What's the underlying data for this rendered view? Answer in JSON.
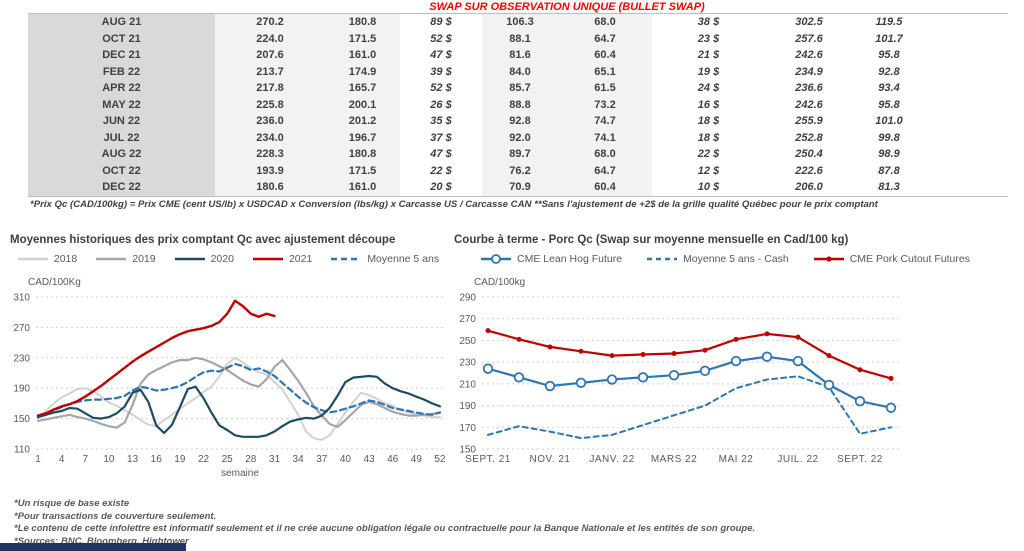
{
  "header": {
    "title": "SWAP SUR OBSERVATION UNIQUE (BULLET SWAP)"
  },
  "swap_table": {
    "rows": [
      [
        "AUG 21",
        "270.2",
        "180.8",
        "89 $",
        "106.3",
        "68.0",
        "38 $",
        "302.5",
        "119.5"
      ],
      [
        "OCT 21",
        "224.0",
        "171.5",
        "52 $",
        "88.1",
        "64.7",
        "23 $",
        "257.6",
        "101.7"
      ],
      [
        "DEC 21",
        "207.6",
        "161.0",
        "47 $",
        "81.6",
        "60.4",
        "21 $",
        "242.6",
        "95.8"
      ],
      [
        "FEB 22",
        "213.7",
        "174.9",
        "39 $",
        "84.0",
        "65.1",
        "19 $",
        "234.9",
        "92.8"
      ],
      [
        "APR 22",
        "217.8",
        "165.7",
        "52 $",
        "85.7",
        "61.5",
        "24 $",
        "236.6",
        "93.4"
      ],
      [
        "MAY 22",
        "225.8",
        "200.1",
        "26 $",
        "88.8",
        "73.2",
        "16 $",
        "242.6",
        "95.8"
      ],
      [
        "JUN 22",
        "236.0",
        "201.2",
        "35 $",
        "92.8",
        "74.7",
        "18 $",
        "255.9",
        "101.0"
      ],
      [
        "JUL 22",
        "234.0",
        "196.7",
        "37 $",
        "92.0",
        "74.1",
        "18 $",
        "252.8",
        "99.8"
      ],
      [
        "AUG 22",
        "228.3",
        "180.8",
        "47 $",
        "89.7",
        "68.0",
        "22 $",
        "250.4",
        "98.9"
      ],
      [
        "OCT 22",
        "193.9",
        "171.5",
        "22 $",
        "76.2",
        "64.7",
        "12 $",
        "222.6",
        "87.8"
      ],
      [
        "DEC 22",
        "180.6",
        "161.0",
        "20 $",
        "70.9",
        "60.4",
        "10 $",
        "206.0",
        "81.3"
      ]
    ]
  },
  "table_footnote": "*Prix Qc (CAD/100kg) = Prix CME (cent US/lb) x USDCAD x Conversion (lbs/kg) x Carcasse US / Carcasse CAN **Sans l'ajustement de +2$ de la grille qualité Québec pour le prix comptant",
  "chart_data": [
    {
      "type": "line",
      "title": "Moyennes historiques des prix comptant Qc avec ajustement découpe",
      "y_axis_label": "CAD/100Kg",
      "xlabel": "semaine",
      "ylim": [
        110,
        310
      ],
      "yticks": [
        110,
        150,
        190,
        230,
        270,
        310
      ],
      "xticks": [
        1,
        4,
        7,
        10,
        13,
        16,
        19,
        22,
        25,
        28,
        31,
        34,
        37,
        40,
        43,
        46,
        49,
        52
      ],
      "x_range_weeks": [
        1,
        52
      ],
      "legend_position": "top",
      "grid": "dotted-horizontal",
      "draw_order": [
        0,
        1,
        4,
        2,
        3
      ],
      "series": [
        {
          "name": "2018",
          "color": "#d2d2d2",
          "width": 2,
          "values": [
            150,
            160,
            170,
            178,
            183,
            189,
            190,
            186,
            179,
            171,
            167,
            161,
            155,
            148,
            142,
            140,
            148,
            155,
            163,
            170,
            177,
            185,
            192,
            205,
            222,
            230,
            224,
            216,
            211,
            208,
            198,
            188,
            172,
            155,
            133,
            124,
            122,
            128,
            143,
            158,
            172,
            184,
            181,
            176,
            170,
            167,
            161,
            158,
            156,
            154,
            152,
            152
          ]
        },
        {
          "name": "2019",
          "color": "#a6a6a6",
          "width": 2.2,
          "values": [
            147,
            149,
            151,
            153,
            155,
            152,
            150,
            147,
            143,
            140,
            138,
            145,
            168,
            196,
            208,
            214,
            219,
            224,
            227,
            227,
            230,
            228,
            224,
            219,
            214,
            207,
            200,
            195,
            192,
            202,
            218,
            227,
            214,
            200,
            184,
            166,
            154,
            143,
            139,
            148,
            158,
            168,
            172,
            169,
            164,
            159,
            156,
            154,
            154,
            155,
            156,
            158
          ]
        },
        {
          "name": "2020",
          "color": "#1f4a64",
          "width": 2.2,
          "values": [
            152,
            155,
            158,
            160,
            164,
            163,
            157,
            151,
            150,
            152,
            157,
            166,
            184,
            188,
            172,
            141,
            131,
            142,
            165,
            189,
            192,
            177,
            158,
            141,
            135,
            128,
            126,
            126,
            126,
            128,
            133,
            140,
            146,
            149,
            151,
            150,
            154,
            164,
            180,
            198,
            204,
            205,
            206,
            205,
            196,
            190,
            186,
            183,
            179,
            175,
            170,
            166
          ]
        },
        {
          "name": "2021",
          "color": "#c00000",
          "width": 2.4,
          "values": [
            154,
            157,
            162,
            166,
            169,
            173,
            179,
            186,
            193,
            201,
            209,
            217,
            225,
            232,
            238,
            244,
            250,
            256,
            261,
            265,
            267,
            269,
            272,
            277,
            288,
            305,
            298,
            288,
            284,
            288,
            285
          ]
        },
        {
          "name": "Moyenne 5 ans",
          "color": "#2e75b6",
          "width": 2.2,
          "dash": "6,4",
          "values": [
            152,
            156,
            161,
            165,
            169,
            172,
            174,
            175,
            175,
            176,
            177,
            180,
            187,
            192,
            190,
            187,
            188,
            190,
            193,
            198,
            205,
            211,
            213,
            212,
            217,
            222,
            219,
            214,
            216,
            212,
            206,
            197,
            188,
            179,
            171,
            165,
            161,
            158,
            160,
            163,
            166,
            170,
            174,
            172,
            168,
            164,
            162,
            160,
            158,
            156,
            155,
            158
          ]
        }
      ]
    },
    {
      "type": "line",
      "title": "Courbe à terme - Porc Qc (Swap sur moyenne mensuelle en Cad/100 kg)",
      "y_axis_label": "CAD/100kg",
      "ylim": [
        150,
        290
      ],
      "yticks": [
        150,
        170,
        190,
        210,
        230,
        250,
        270,
        290
      ],
      "categories": [
        "SEPT. 21",
        "OCT. 21",
        "NOV. 21",
        "DÉC. 21",
        "JANV. 22",
        "FÉVR. 22",
        "MARS 22",
        "AVR. 22",
        "MAI 22",
        "JUIN 22",
        "JUIL. 22",
        "AOÛT 22",
        "SEPT. 22",
        "OCT. 22"
      ],
      "xtick_labels": [
        "SEPT. 21",
        "NOV. 21",
        "JANV. 22",
        "MARS 22",
        "MAI 22",
        "JUIL. 22",
        "SEPT. 22"
      ],
      "xtick_indices": [
        0,
        2,
        4,
        6,
        8,
        10,
        12
      ],
      "legend_position": "top",
      "grid": "dotted-horizontal",
      "draw_order": [
        1,
        0,
        2
      ],
      "series": [
        {
          "name": "CME Lean Hog Future",
          "color": "#2e75b6",
          "width": 2.2,
          "marker": "circle-open",
          "values": [
            224,
            216,
            208,
            211,
            214,
            216,
            218,
            222,
            231,
            235,
            231,
            209,
            194,
            188
          ]
        },
        {
          "name": "Moyenne 5 ans - Cash",
          "color": "#2e75b6",
          "width": 2,
          "dash": "5,4",
          "values": [
            163,
            171,
            166,
            160,
            163,
            172,
            181,
            190,
            206,
            214,
            217,
            207,
            164,
            170
          ]
        },
        {
          "name": "CME Pork Cutout Futures",
          "color": "#c00000",
          "width": 2.2,
          "marker": "dot",
          "values": [
            259,
            251,
            244,
            240,
            236,
            237,
            238,
            241,
            251,
            256,
            253,
            236,
            223,
            215
          ]
        }
      ]
    }
  ],
  "footnotes": [
    "*Un risque de base existe",
    "*Pour transactions de couverture seulement.",
    "*Le contenu de cette infolettre est informatif seulement et il ne crée aucune obligation légale ou contractuelle pour la Banque Nationale et les entités de son groupe.",
    "*Sources: BNC, Bloomberg, Hightower"
  ],
  "colors": {
    "title_red": "#ff0000",
    "table_green": "#00b050",
    "table_blue": "#4472c4",
    "month_col_bg": "#d9d9d9",
    "value_col_bg": "#f2f2f2",
    "line_navy": "#1f4a64",
    "line_red": "#c00000",
    "line_blue": "#2e75b6",
    "footer_bar": "#20365c"
  }
}
